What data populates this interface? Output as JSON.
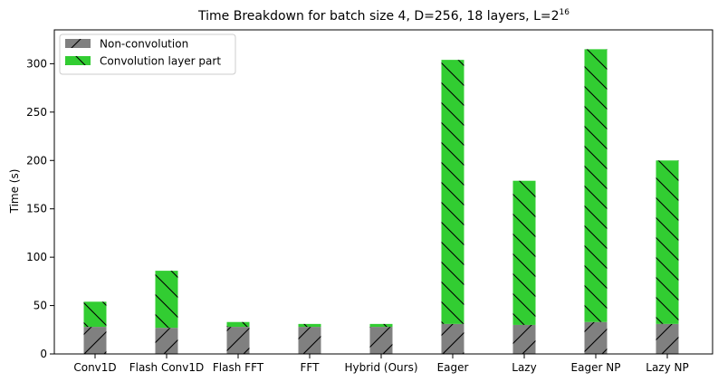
{
  "chart_data": {
    "type": "bar",
    "stacked": true,
    "title": "Time Breakdown for batch size 4, D=256, 18 layers, L=2",
    "title_superscript": "16",
    "ylabel": "Time (s)",
    "xlabel": "",
    "ylim": [
      0,
      335
    ],
    "yticks": [
      0,
      50,
      100,
      150,
      200,
      250,
      300
    ],
    "grid": false,
    "legend_position": "top-left",
    "categories": [
      "Conv1D",
      "Flash Conv1D",
      "Flash FFT",
      "FFT",
      "Hybrid (Ours)",
      "Eager",
      "Lazy",
      "Eager NP",
      "Lazy NP"
    ],
    "series": [
      {
        "name": "Non-convolution",
        "color": "#808080",
        "hatch": "/",
        "values": [
          28,
          27,
          28,
          28,
          28,
          31,
          30,
          33,
          31
        ]
      },
      {
        "name": "Convolution layer part",
        "color": "#32cd32",
        "hatch": "\\",
        "values": [
          26,
          59,
          5,
          3,
          3,
          273,
          149,
          282,
          169
        ]
      }
    ]
  }
}
